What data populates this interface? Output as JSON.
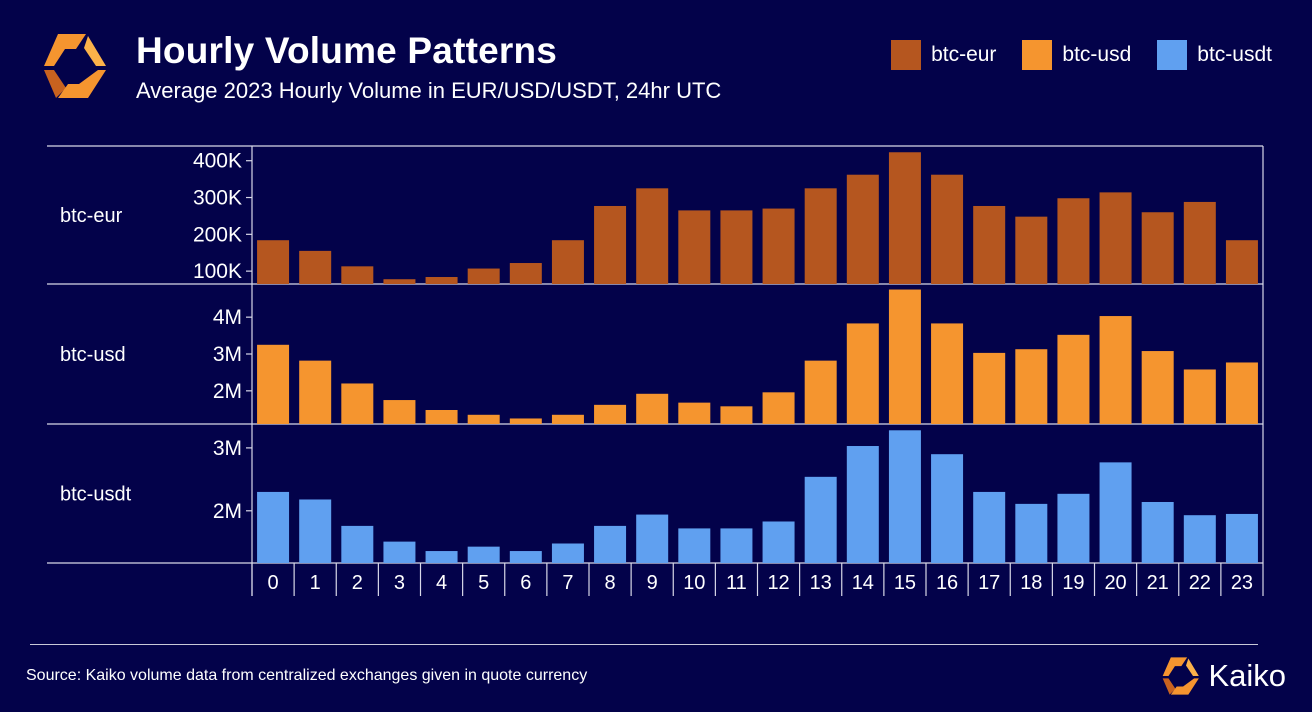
{
  "header": {
    "title": "Hourly Volume Patterns",
    "subtitle": "Average 2023 Hourly Volume in EUR/USD/USDT, 24hr UTC"
  },
  "legend": [
    {
      "label": "btc-eur",
      "color": "#b5561f"
    },
    {
      "label": "btc-usd",
      "color": "#f5952f"
    },
    {
      "label": "btc-usdt",
      "color": "#60a0f0"
    }
  ],
  "footer": {
    "source": "Source: Kaiko volume data from centralized exchanges given in quote currency",
    "brand": "Kaiko"
  },
  "chart_data": {
    "type": "bar",
    "categories": [
      "0",
      "1",
      "2",
      "3",
      "4",
      "5",
      "6",
      "7",
      "8",
      "9",
      "10",
      "11",
      "12",
      "13",
      "14",
      "15",
      "16",
      "17",
      "18",
      "19",
      "20",
      "21",
      "22",
      "23"
    ],
    "xlabel": "",
    "panels": [
      {
        "name": "btc-eur",
        "color": "#b5561f",
        "ylim": [
          65000,
          440000
        ],
        "ticks": [
          100000,
          200000,
          300000,
          400000
        ],
        "tick_labels": [
          "100K",
          "200K",
          "300K",
          "400K"
        ],
        "values": [
          184000,
          155000,
          113000,
          78000,
          84000,
          107000,
          122000,
          184000,
          277000,
          325000,
          265000,
          265000,
          270000,
          325000,
          362000,
          423000,
          362000,
          277000,
          248000,
          298000,
          314000,
          260000,
          288000,
          184000
        ]
      },
      {
        "name": "btc-usd",
        "color": "#f5952f",
        "ylim": [
          1100000,
          4900000
        ],
        "ticks": [
          2000000,
          3000000,
          4000000
        ],
        "tick_labels": [
          "2M",
          "3M",
          "4M"
        ],
        "values": [
          3250000,
          2820000,
          2200000,
          1750000,
          1480000,
          1350000,
          1250000,
          1350000,
          1620000,
          1920000,
          1680000,
          1580000,
          1960000,
          2820000,
          3830000,
          4750000,
          3830000,
          3030000,
          3130000,
          3520000,
          4030000,
          3080000,
          2580000,
          2770000
        ]
      },
      {
        "name": "btc-usdt",
        "color": "#60a0f0",
        "ylim": [
          1170000,
          3380000
        ],
        "ticks": [
          2000000,
          3000000
        ],
        "tick_labels": [
          "2M",
          "3M"
        ],
        "values": [
          2300000,
          2180000,
          1760000,
          1510000,
          1360000,
          1430000,
          1360000,
          1480000,
          1760000,
          1940000,
          1720000,
          1720000,
          1830000,
          2540000,
          3030000,
          3280000,
          2900000,
          2300000,
          2110000,
          2270000,
          2770000,
          2140000,
          1930000,
          1950000
        ]
      }
    ]
  }
}
